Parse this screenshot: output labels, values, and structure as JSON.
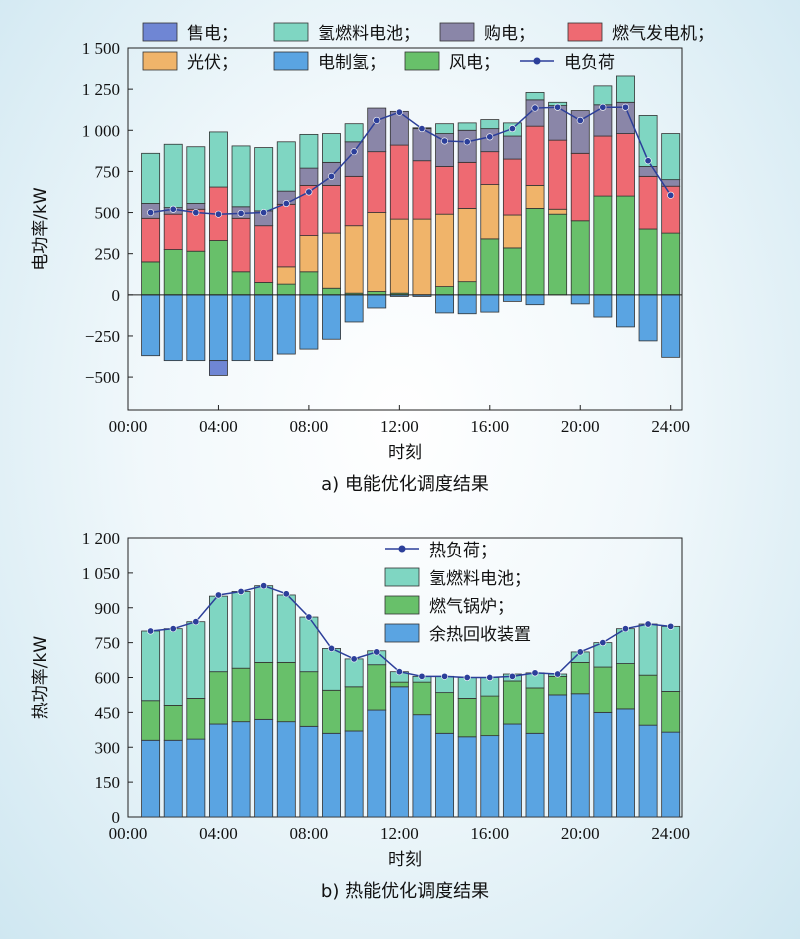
{
  "colors": {
    "sell": "#6f86d4",
    "fc": "#7fd6c2",
    "buy": "#8a86a8",
    "gt": "#ee6a72",
    "pv": "#f0b46a",
    "elz": "#5aa4e2",
    "wind": "#68c06a",
    "load": "#2c3f9a",
    "wh": "#5aa4e2",
    "boiler": "#68c06a"
  },
  "chart_data": [
    {
      "type": "bar",
      "stacked": true,
      "ylabel": "电功率/kW",
      "xlabel": "时刻",
      "caption": "a) 电能优化调度结果",
      "ylim": [
        -700,
        1500
      ],
      "yticks": [
        -500,
        -250,
        0,
        250,
        500,
        750,
        1000,
        1250,
        1500
      ],
      "ytick_labels": [
        "−500",
        "−250",
        "0",
        "250",
        "500",
        "750",
        "1 000",
        "1 250",
        "1 500"
      ],
      "xticks": [
        0,
        4,
        8,
        12,
        16,
        20,
        24
      ],
      "xtick_labels": [
        "00:00",
        "04:00",
        "08:00",
        "12:00",
        "16:00",
        "20:00",
        "24:00"
      ],
      "x": [
        1,
        2,
        3,
        4,
        5,
        6,
        7,
        8,
        9,
        10,
        11,
        12,
        13,
        14,
        15,
        16,
        17,
        18,
        19,
        20,
        21,
        22,
        23,
        24
      ],
      "legend_placement": "top",
      "legend": [
        {
          "name": "售电；",
          "key": "sell",
          "kind": "patch"
        },
        {
          "name": "氢燃料电池；",
          "key": "fc",
          "kind": "patch"
        },
        {
          "name": "购电；",
          "key": "buy",
          "kind": "patch"
        },
        {
          "name": "燃气发电机；",
          "key": "gt",
          "kind": "patch"
        },
        {
          "name": "光伏；",
          "key": "pv",
          "kind": "patch"
        },
        {
          "name": "电制氢；",
          "key": "elz",
          "kind": "patch"
        },
        {
          "name": "风电；",
          "key": "wind",
          "kind": "patch"
        },
        {
          "name": "电负荷",
          "key": "load",
          "kind": "line"
        }
      ],
      "positive_series": [
        {
          "key": "wind",
          "values": [
            200,
            275,
            265,
            330,
            140,
            75,
            65,
            140,
            40,
            10,
            20,
            10,
            0,
            50,
            80,
            340,
            285,
            525,
            490,
            450,
            600,
            600,
            400,
            375
          ]
        },
        {
          "key": "pv",
          "values": [
            0,
            0,
            0,
            0,
            0,
            0,
            105,
            220,
            335,
            410,
            480,
            450,
            460,
            440,
            445,
            330,
            200,
            140,
            30,
            0,
            0,
            0,
            0,
            0
          ]
        },
        {
          "key": "gt",
          "values": [
            265,
            215,
            255,
            325,
            325,
            345,
            380,
            305,
            290,
            300,
            370,
            450,
            355,
            290,
            280,
            200,
            340,
            360,
            420,
            410,
            365,
            380,
            320,
            285
          ]
        },
        {
          "key": "buy",
          "values": [
            90,
            40,
            35,
            0,
            70,
            90,
            80,
            105,
            140,
            210,
            265,
            205,
            195,
            200,
            195,
            140,
            140,
            160,
            210,
            260,
            190,
            190,
            60,
            40
          ]
        },
        {
          "key": "fc",
          "values": [
            305,
            385,
            345,
            335,
            370,
            385,
            300,
            205,
            175,
            110,
            0,
            0,
            5,
            60,
            45,
            55,
            80,
            45,
            20,
            0,
            115,
            160,
            310,
            280
          ]
        }
      ],
      "negative_series": [
        {
          "key": "elz",
          "values": [
            -370,
            -400,
            -400,
            -400,
            -400,
            -400,
            -360,
            -330,
            -270,
            -165,
            -80,
            -10,
            -10,
            -110,
            -115,
            -105,
            -40,
            -60,
            0,
            -55,
            -135,
            -195,
            -280,
            -380
          ]
        },
        {
          "key": "sell",
          "values": [
            0,
            0,
            0,
            -90,
            0,
            0,
            0,
            0,
            0,
            0,
            0,
            0,
            0,
            0,
            0,
            0,
            0,
            0,
            0,
            0,
            0,
            0,
            0,
            0
          ]
        }
      ],
      "line_series": {
        "key": "load",
        "values": [
          500,
          520,
          500,
          490,
          495,
          500,
          555,
          625,
          720,
          870,
          1060,
          1110,
          1010,
          935,
          930,
          960,
          1010,
          1135,
          1140,
          1060,
          1140,
          1140,
          815,
          605
        ]
      }
    },
    {
      "type": "bar",
      "stacked": true,
      "ylabel": "热功率/kW",
      "xlabel": "时刻",
      "caption": "b) 热能优化调度结果",
      "ylim": [
        0,
        1200
      ],
      "yticks": [
        0,
        150,
        300,
        450,
        600,
        750,
        900,
        1050,
        1200
      ],
      "ytick_labels": [
        "0",
        "150",
        "300",
        "450",
        "600",
        "750",
        "900",
        "1 050",
        "1 200"
      ],
      "xticks": [
        0,
        4,
        8,
        12,
        16,
        20,
        24
      ],
      "xtick_labels": [
        "00:00",
        "04:00",
        "08:00",
        "12:00",
        "16:00",
        "20:00",
        "24:00"
      ],
      "x": [
        1,
        2,
        3,
        4,
        5,
        6,
        7,
        8,
        9,
        10,
        11,
        12,
        13,
        14,
        15,
        16,
        17,
        18,
        19,
        20,
        21,
        22,
        23,
        24
      ],
      "legend_placement": "top-right",
      "legend": [
        {
          "name": "热负荷；",
          "key": "load",
          "kind": "line"
        },
        {
          "name": "氢燃料电池；",
          "key": "fc",
          "kind": "patch"
        },
        {
          "name": "燃气锅炉；",
          "key": "boiler",
          "kind": "patch"
        },
        {
          "name": "余热回收装置",
          "key": "wh",
          "kind": "patch"
        }
      ],
      "positive_series": [
        {
          "key": "wh",
          "values": [
            330,
            330,
            335,
            400,
            410,
            420,
            410,
            390,
            360,
            370,
            460,
            560,
            440,
            360,
            345,
            350,
            400,
            360,
            525,
            530,
            450,
            465,
            395,
            365
          ]
        },
        {
          "key": "boiler",
          "values": [
            170,
            150,
            175,
            225,
            230,
            245,
            255,
            235,
            185,
            190,
            195,
            20,
            140,
            175,
            165,
            170,
            185,
            195,
            80,
            135,
            195,
            195,
            215,
            175
          ]
        },
        {
          "key": "fc",
          "values": [
            300,
            330,
            330,
            325,
            330,
            330,
            290,
            235,
            180,
            120,
            60,
            45,
            25,
            70,
            90,
            80,
            30,
            65,
            10,
            45,
            105,
            150,
            220,
            280
          ]
        }
      ],
      "negative_series": [],
      "line_series": {
        "key": "load",
        "values": [
          800,
          810,
          840,
          955,
          970,
          995,
          960,
          860,
          725,
          680,
          710,
          625,
          605,
          605,
          600,
          600,
          605,
          620,
          615,
          710,
          750,
          810,
          830,
          820
        ]
      }
    }
  ]
}
